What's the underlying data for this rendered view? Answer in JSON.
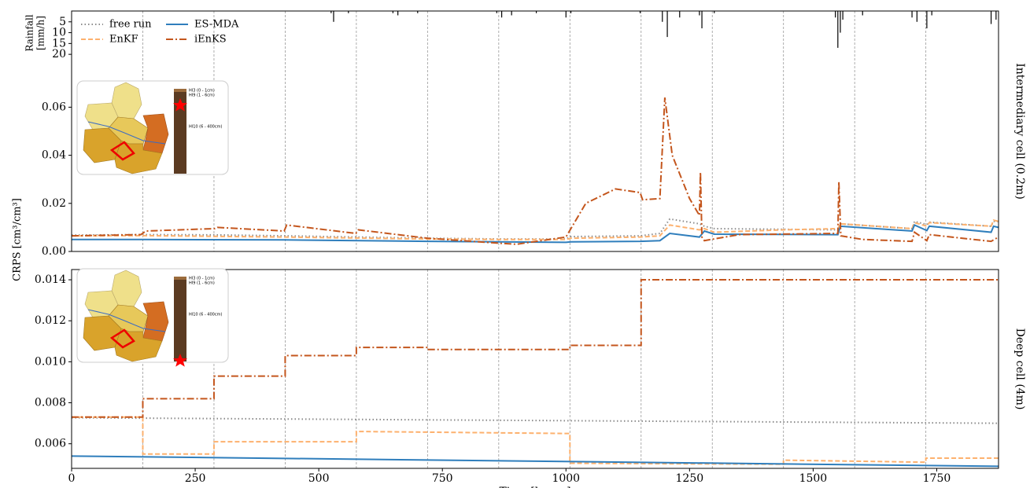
{
  "shared_ylabel": "CRPS [cm³/cm³]",
  "inset_labels": [
    "HI3 (0 - 1cm)",
    "HI9 (1 - 6cm)",
    "HI10 (6 - 400cm)"
  ],
  "chart_data": [
    {
      "type": "rainfall",
      "ylabel": [
        "Rainfall",
        "[mm/h]"
      ],
      "inverted": true,
      "xlim": [
        0,
        1875
      ],
      "ylim": [
        0,
        111
      ],
      "yticks": [
        5,
        10,
        15,
        20
      ],
      "color": "#000000",
      "x": [
        525,
        530,
        560,
        650,
        660,
        700,
        860,
        870,
        890,
        940,
        1000,
        1010,
        1150,
        1195,
        1205,
        1230,
        1270,
        1275,
        1300,
        1545,
        1550,
        1555,
        1560,
        1600,
        1700,
        1710,
        1730,
        1740,
        1860,
        1870
      ],
      "values": [
        1,
        5,
        1,
        1,
        2,
        1,
        1,
        3,
        2,
        1,
        3,
        1,
        1,
        5,
        12,
        3,
        2,
        8,
        1,
        3,
        17,
        10,
        4,
        2,
        3,
        5,
        8,
        2,
        6,
        4
      ]
    },
    {
      "type": "line",
      "side_label": "Intermediary cell (0.2m)",
      "legend": "upper left",
      "xlim": [
        0,
        1875
      ],
      "ylim": [
        0,
        0.1
      ],
      "yticks": [
        {
          "value": 0,
          "label": "0.00"
        },
        0.02,
        0.04,
        0.06
      ],
      "vlines": [
        144,
        288,
        432,
        576,
        720,
        864,
        1008,
        1152,
        1296,
        1440,
        1584,
        1728
      ],
      "series": [
        {
          "name": "free run",
          "color": "#8c8c8c",
          "linestyle": "dotted",
          "x": [
            0,
            140,
            290,
            430,
            575,
            720,
            860,
            1000,
            1010,
            1150,
            1190,
            1210,
            1270,
            1280,
            1300,
            1550,
            1555,
            1700,
            1705,
            1730,
            1735,
            1860,
            1865,
            1875
          ],
          "values": [
            0.0068,
            0.007,
            0.0069,
            0.0065,
            0.006,
            0.0055,
            0.0052,
            0.0052,
            0.0062,
            0.0065,
            0.0075,
            0.0135,
            0.0115,
            0.0105,
            0.0095,
            0.009,
            0.0115,
            0.0095,
            0.0125,
            0.0112,
            0.0122,
            0.0105,
            0.0125,
            0.0125
          ]
        },
        {
          "name": "EnKF",
          "color": "#fdb16e",
          "linestyle": "dashed",
          "x": [
            0,
            140,
            430,
            720,
            860,
            1000,
            1010,
            1150,
            1190,
            1210,
            1270,
            1280,
            1300,
            1440,
            1550,
            1555,
            1700,
            1705,
            1730,
            1735,
            1860,
            1865,
            1875
          ],
          "values": [
            0.0065,
            0.0066,
            0.006,
            0.0052,
            0.005,
            0.005,
            0.0055,
            0.006,
            0.0065,
            0.011,
            0.009,
            0.0095,
            0.008,
            0.009,
            0.0095,
            0.0115,
            0.0095,
            0.012,
            0.0105,
            0.012,
            0.0105,
            0.013,
            0.0125
          ]
        },
        {
          "name": "ES-MDA",
          "color": "#2f7ebc",
          "linestyle": "solid",
          "x": [
            0,
            140,
            430,
            720,
            1000,
            1010,
            1150,
            1190,
            1210,
            1270,
            1280,
            1300,
            1550,
            1555,
            1700,
            1705,
            1730,
            1735,
            1860,
            1865,
            1875
          ],
          "values": [
            0.005,
            0.005,
            0.0048,
            0.0042,
            0.0038,
            0.004,
            0.0042,
            0.0045,
            0.0075,
            0.006,
            0.0085,
            0.0072,
            0.007,
            0.0105,
            0.0085,
            0.011,
            0.0087,
            0.0105,
            0.008,
            0.0105,
            0.01
          ]
        },
        {
          "name": "iEnKS",
          "color": "#c4561d",
          "linestyle": "dashdot",
          "x": [
            0,
            140,
            150,
            290,
            295,
            430,
            435,
            575,
            580,
            720,
            860,
            900,
            1000,
            1040,
            1100,
            1150,
            1155,
            1190,
            1200,
            1215,
            1250,
            1270,
            1272,
            1275,
            1280,
            1350,
            1550,
            1552,
            1556,
            1600,
            1700,
            1705,
            1730,
            1735,
            1860,
            1875
          ],
          "values": [
            0.0065,
            0.007,
            0.0085,
            0.0095,
            0.01,
            0.0085,
            0.011,
            0.0075,
            0.009,
            0.0055,
            0.0035,
            0.003,
            0.006,
            0.02,
            0.026,
            0.0245,
            0.0215,
            0.022,
            0.064,
            0.04,
            0.022,
            0.015,
            0.033,
            0.006,
            0.0045,
            0.007,
            0.0075,
            0.029,
            0.0065,
            0.005,
            0.0042,
            0.008,
            0.0045,
            0.007,
            0.0042,
            0.006
          ]
        }
      ]
    },
    {
      "type": "line",
      "side_label": "Deep cell (4m)",
      "xlabel": "Time [hours]",
      "xlim": [
        0,
        1875
      ],
      "ylim": [
        0.0048,
        0.0145
      ],
      "xticks": [
        0,
        250,
        500,
        750,
        1000,
        1250,
        1500,
        1750
      ],
      "yticks": [
        0.006,
        0.008,
        {
          "value": 0.01,
          "label": "0.010"
        },
        0.012,
        0.014
      ],
      "vlines": [
        144,
        288,
        432,
        576,
        720,
        864,
        1008,
        1152,
        1296,
        1440,
        1584,
        1728
      ],
      "series": [
        {
          "color": "#8c8c8c",
          "linestyle": "dotted",
          "x": [
            0,
            1875
          ],
          "values": [
            0.00727,
            0.007
          ]
        },
        {
          "color": "#fdb16e",
          "linestyle": "dashed",
          "x": [
            0,
            144,
            144,
            288,
            288,
            576,
            576,
            1008,
            1008,
            1440,
            1440,
            1728,
            1728,
            1875
          ],
          "values": [
            0.0073,
            0.0073,
            0.0055,
            0.0055,
            0.0061,
            0.0061,
            0.0066,
            0.0065,
            0.00505,
            0.005,
            0.0052,
            0.0051,
            0.0053,
            0.0053
          ]
        },
        {
          "color": "#2f7ebc",
          "linestyle": "solid",
          "x": [
            0,
            1875
          ],
          "values": [
            0.0054,
            0.0049
          ]
        },
        {
          "color": "#c4561d",
          "linestyle": "dashdot",
          "x": [
            0,
            144,
            144,
            288,
            288,
            432,
            432,
            576,
            576,
            720,
            720,
            1008,
            1008,
            1152,
            1152,
            1875
          ],
          "values": [
            0.0073,
            0.0073,
            0.0082,
            0.0082,
            0.0093,
            0.0093,
            0.0103,
            0.0103,
            0.0107,
            0.0107,
            0.0106,
            0.0106,
            0.0108,
            0.0108,
            0.014,
            0.014
          ]
        }
      ]
    }
  ]
}
